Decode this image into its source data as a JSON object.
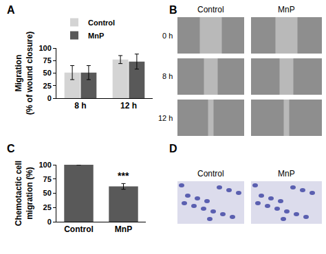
{
  "chart_data": [
    {
      "type": "bar",
      "panel": "A",
      "categories": [
        "8 h",
        "12 h"
      ],
      "ylabel": [
        "Migration",
        "(% of wound closure)"
      ],
      "series": [
        {
          "name": "Control",
          "color": "#d4d4d4",
          "values": [
            51,
            77
          ],
          "errors": [
            14,
            8
          ]
        },
        {
          "name": "MnP",
          "color": "#595959",
          "values": [
            51,
            73
          ],
          "errors": [
            14,
            15
          ]
        }
      ],
      "ylim": [
        0,
        100
      ],
      "yticks": [
        0,
        25,
        50,
        75,
        100
      ],
      "grid": false,
      "legend": "upper left"
    },
    {
      "type": "bar",
      "panel": "C",
      "categories": [
        "Control",
        "MnP"
      ],
      "ylabel": [
        "Chemotactic cell",
        "migration (%)"
      ],
      "values": [
        100,
        62
      ],
      "errors": [
        0,
        5
      ],
      "color": "#595959",
      "annotations": [
        {
          "category": "MnP",
          "text": "***"
        }
      ],
      "ylim": [
        0,
        100
      ],
      "yticks": [
        0,
        25,
        50,
        75,
        100
      ],
      "grid": false
    }
  ],
  "images": [
    {
      "panel": "B",
      "columns": [
        "Control",
        "MnP"
      ],
      "rows": [
        "0 h",
        "8 h",
        "12 h"
      ]
    },
    {
      "panel": "D",
      "columns": [
        "Control",
        "MnP"
      ]
    }
  ]
}
